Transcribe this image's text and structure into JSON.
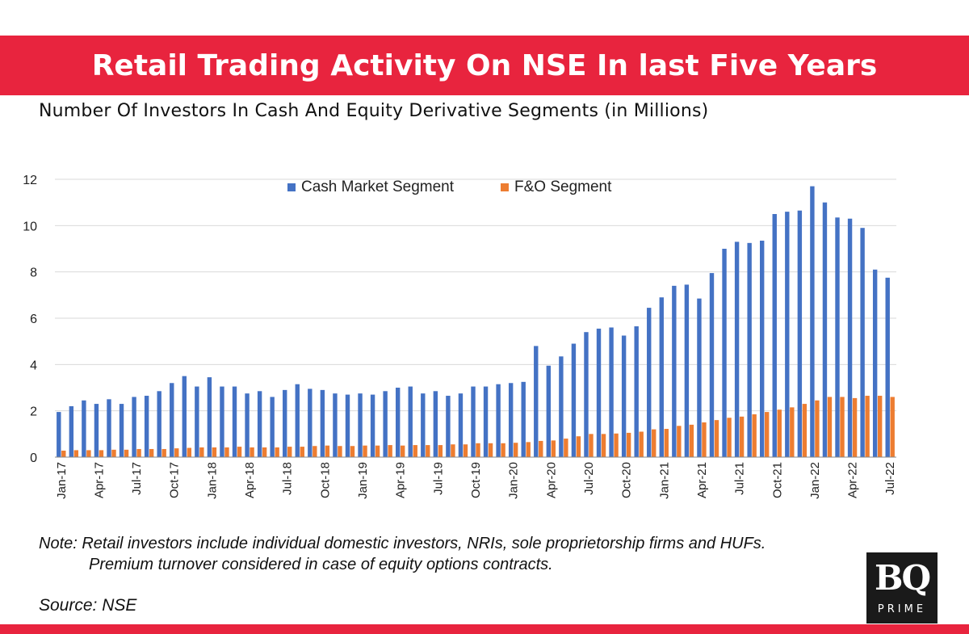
{
  "header": {
    "title": "Retail Trading Activity On NSE In last Five Years",
    "subtitle": "Number Of Investors In Cash And Equity Derivative Segments (in Millions)"
  },
  "footer": {
    "note_line1": "Note:  Retail investors include individual domestic investors, NRIs, sole proprietorship firms and HUFs.",
    "note_line2": "Premium turnover considered in case of equity options contracts.",
    "source": "Source: NSE"
  },
  "logo": {
    "mark": "BQ",
    "sub": "PRIME"
  },
  "colors": {
    "brand_red": "#e8243e",
    "cash": "#4472c4",
    "fo": "#ed7d31",
    "grid": "#d9d9d9"
  },
  "chart_data": {
    "type": "bar",
    "title": "Number Of Investors In Cash And Equity Derivative Segments (in Millions)",
    "xlabel": "",
    "ylabel": "",
    "ylim": [
      0,
      12
    ],
    "yticks": [
      0,
      2,
      4,
      6,
      8,
      10,
      12
    ],
    "grid": true,
    "legend_position": "top-center",
    "categories": [
      "Jan-17",
      "Feb-17",
      "Mar-17",
      "Apr-17",
      "May-17",
      "Jun-17",
      "Jul-17",
      "Aug-17",
      "Sep-17",
      "Oct-17",
      "Nov-17",
      "Dec-17",
      "Jan-18",
      "Feb-18",
      "Mar-18",
      "Apr-18",
      "May-18",
      "Jun-18",
      "Jul-18",
      "Aug-18",
      "Sep-18",
      "Oct-18",
      "Nov-18",
      "Dec-18",
      "Jan-19",
      "Feb-19",
      "Mar-19",
      "Apr-19",
      "May-19",
      "Jun-19",
      "Jul-19",
      "Aug-19",
      "Sep-19",
      "Oct-19",
      "Nov-19",
      "Dec-19",
      "Jan-20",
      "Feb-20",
      "Mar-20",
      "Apr-20",
      "May-20",
      "Jun-20",
      "Jul-20",
      "Aug-20",
      "Sep-20",
      "Oct-20",
      "Nov-20",
      "Dec-20",
      "Jan-21",
      "Feb-21",
      "Mar-21",
      "Apr-21",
      "May-21",
      "Jun-21",
      "Jul-21",
      "Aug-21",
      "Sep-21",
      "Oct-21",
      "Nov-21",
      "Dec-21",
      "Jan-22",
      "Feb-22",
      "Mar-22",
      "Apr-22",
      "May-22",
      "Jun-22",
      "Jul-22"
    ],
    "tick_labels": [
      "Jan-17",
      "Apr-17",
      "Jul-17",
      "Oct-17",
      "Jan-18",
      "Apr-18",
      "Jul-18",
      "Oct-18",
      "Jan-19",
      "Apr-19",
      "Jul-19",
      "Oct-19",
      "Jan-20",
      "Apr-20",
      "Jul-20",
      "Oct-20",
      "Jan-21",
      "Apr-21",
      "Jul-21",
      "Oct-21",
      "Jan-22",
      "Apr-22",
      "Jul-22"
    ],
    "series": [
      {
        "name": "Cash Market Segment",
        "color": "#4472c4",
        "values": [
          1.95,
          2.2,
          2.45,
          2.3,
          2.5,
          2.3,
          2.6,
          2.65,
          2.85,
          3.2,
          3.5,
          3.05,
          3.45,
          3.05,
          3.05,
          2.75,
          2.85,
          2.6,
          2.9,
          3.15,
          2.95,
          2.9,
          2.75,
          2.7,
          2.75,
          2.7,
          2.85,
          3.0,
          3.05,
          2.75,
          2.85,
          2.65,
          2.75,
          3.05,
          3.05,
          3.15,
          3.2,
          3.25,
          4.8,
          3.95,
          4.35,
          4.9,
          5.4,
          5.55,
          5.6,
          5.25,
          5.65,
          6.45,
          6.9,
          7.4,
          7.45,
          6.85,
          7.95,
          9.0,
          9.3,
          9.25,
          9.35,
          10.5,
          10.6,
          10.65,
          11.7,
          11.0,
          10.35,
          10.3,
          9.9,
          8.1,
          7.75
        ]
      },
      {
        "name": "F&O Segment",
        "color": "#ed7d31",
        "values": [
          0.28,
          0.3,
          0.3,
          0.3,
          0.32,
          0.32,
          0.35,
          0.35,
          0.35,
          0.38,
          0.4,
          0.42,
          0.42,
          0.42,
          0.45,
          0.42,
          0.42,
          0.42,
          0.45,
          0.45,
          0.48,
          0.5,
          0.48,
          0.48,
          0.5,
          0.5,
          0.52,
          0.5,
          0.52,
          0.52,
          0.52,
          0.55,
          0.55,
          0.6,
          0.6,
          0.6,
          0.62,
          0.65,
          0.7,
          0.72,
          0.8,
          0.9,
          1.0,
          1.0,
          1.02,
          1.05,
          1.1,
          1.2,
          1.22,
          1.35,
          1.4,
          1.5,
          1.6,
          1.7,
          1.75,
          1.85,
          1.95,
          2.05,
          2.15,
          2.3,
          2.45,
          2.6,
          2.6,
          2.55,
          2.65,
          2.65,
          2.6
        ]
      }
    ]
  }
}
